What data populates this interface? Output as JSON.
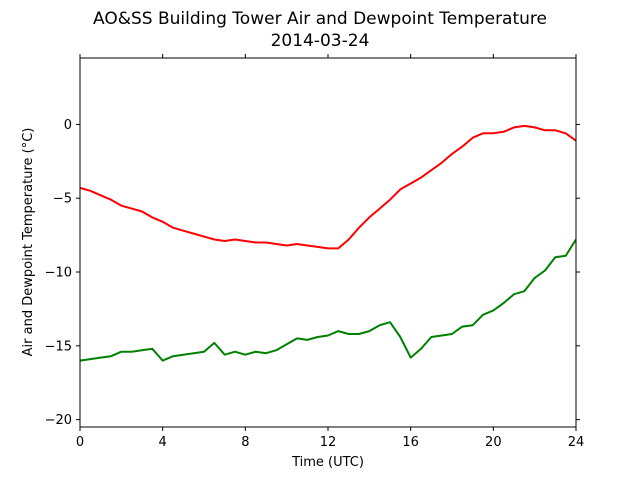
{
  "chart_data": {
    "type": "line",
    "title": "AO&SS Building Tower Air and Dewpoint Temperature",
    "subtitle": "2014-03-24",
    "xlabel": "Time (UTC)",
    "ylabel": "Air and Dewpoint Temperature (°C)",
    "xlim": [
      0,
      24
    ],
    "ylim": [
      -20.5,
      4.5
    ],
    "xticks": [
      0,
      4,
      8,
      12,
      16,
      20,
      24
    ],
    "yticks": [
      -20,
      -15,
      -10,
      -5,
      0
    ],
    "grid": false,
    "series": [
      {
        "color": "#ff0000",
        "x": [
          0,
          0.5,
          1,
          1.5,
          2,
          2.5,
          3,
          3.5,
          4,
          4.5,
          5,
          5.5,
          6,
          6.5,
          7,
          7.5,
          8,
          8.5,
          9,
          9.5,
          10,
          10.5,
          11,
          11.5,
          12,
          12.5,
          13,
          13.5,
          14,
          14.5,
          15,
          15.5,
          16,
          16.5,
          17,
          17.5,
          18,
          18.5,
          19,
          19.5,
          20,
          20.5,
          21,
          21.5,
          22,
          22.5,
          23,
          23.5,
          24
        ],
        "values": [
          -4.3,
          -4.5,
          -4.8,
          -5.1,
          -5.5,
          -5.7,
          -5.9,
          -6.3,
          -6.6,
          -7.0,
          -7.2,
          -7.4,
          -7.6,
          -7.8,
          -7.9,
          -7.8,
          -7.9,
          -8.0,
          -8.0,
          -8.1,
          -8.2,
          -8.1,
          -8.2,
          -8.3,
          -8.4,
          -8.4,
          -7.8,
          -7.0,
          -6.3,
          -5.7,
          -5.1,
          -4.4,
          -4.0,
          -3.6,
          -3.1,
          -2.6,
          -2.0,
          -1.5,
          -0.9,
          -0.6,
          -0.6,
          -0.5,
          -0.2,
          -0.1,
          -0.2,
          -0.4,
          -0.4,
          -0.6,
          -1.1
        ]
      },
      {
        "color": "#008000",
        "x": [
          0,
          0.5,
          1,
          1.5,
          2,
          2.5,
          3,
          3.5,
          4,
          4.5,
          5,
          5.5,
          6,
          6.5,
          7,
          7.5,
          8,
          8.5,
          9,
          9.5,
          10,
          10.5,
          11,
          11.5,
          12,
          12.5,
          13,
          13.5,
          14,
          14.5,
          15,
          15.5,
          16,
          16.5,
          17,
          17.5,
          18,
          18.5,
          19,
          19.5,
          20,
          20.5,
          21,
          21.5,
          22,
          22.5,
          23,
          23.5,
          24
        ],
        "values": [
          -16.0,
          -15.9,
          -15.8,
          -15.7,
          -15.4,
          -15.4,
          -15.3,
          -15.2,
          -16.0,
          -15.7,
          -15.6,
          -15.5,
          -15.4,
          -14.8,
          -15.6,
          -15.4,
          -15.6,
          -15.4,
          -15.5,
          -15.3,
          -14.9,
          -14.5,
          -14.6,
          -14.4,
          -14.3,
          -14.0,
          -14.2,
          -14.2,
          -14.0,
          -13.6,
          -13.4,
          -14.4,
          -15.8,
          -15.2,
          -14.4,
          -14.3,
          -14.2,
          -13.7,
          -13.6,
          -12.9,
          -12.6,
          -12.1,
          -11.5,
          -11.3,
          -10.4,
          -9.9,
          -9.0,
          -8.9,
          -7.8
        ]
      }
    ]
  }
}
